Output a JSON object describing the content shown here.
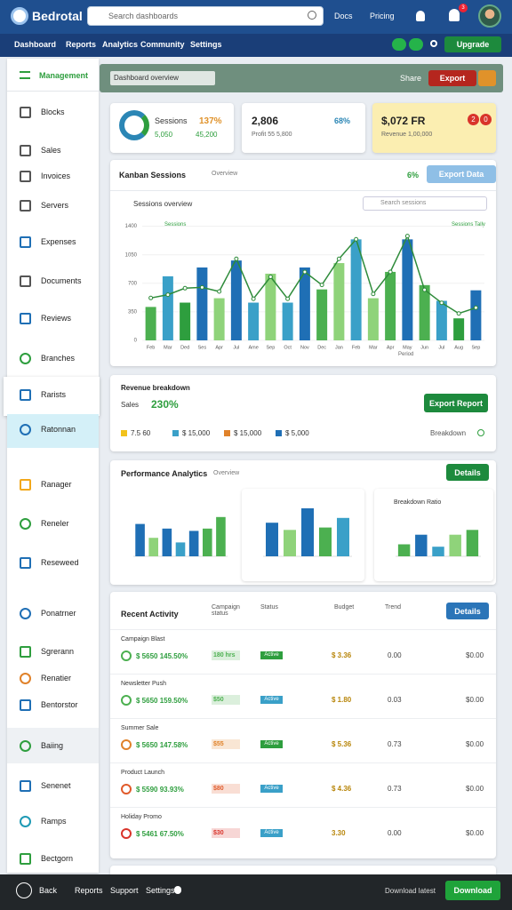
{
  "header": {
    "logo": "Bedrotal",
    "search": "Search dashboards",
    "links": [
      "Docs",
      "Pricing"
    ],
    "badge": "3"
  },
  "nav": {
    "items": [
      "Dashboard",
      "Reports",
      "Analytics",
      "Community",
      "Settings"
    ],
    "button": "Upgrade"
  },
  "sidebar": {
    "title": "Management",
    "items": [
      "Blocks",
      "Sales",
      "Invoices",
      "Servers",
      "Expenses",
      "Documents",
      "Reviews",
      "Branches",
      "Rarists",
      "Ratonnan",
      "Ranager",
      "Reneler",
      "Reseweed",
      "Ponatrner",
      "Sgrerann",
      "Renatier",
      "Bentorstor",
      "Baiing",
      "Senenet",
      "Ramps",
      "Bectgorn"
    ]
  },
  "toolbar": {
    "title": "Dashboard overview",
    "share": "Share",
    "export": "Export"
  },
  "cards": [
    {
      "label": "Sessions",
      "value": "137%",
      "sub1": "5,050",
      "sub2": "45,200"
    },
    {
      "value": "2,806",
      "pct": "68%",
      "sub": "Profit 55 5,800"
    },
    {
      "value": "$,072 FR",
      "sub": "Revenue 1,00,000",
      "badges": [
        "2",
        "0"
      ]
    }
  ],
  "main_chart": {
    "title": "Kanban Sessions",
    "subtitle": "Overview",
    "change": "6%",
    "button": "Export Data",
    "filter": "Sessions overview",
    "search": "Search sessions",
    "legend": "Sessions",
    "right_legend": "Sessions Tally",
    "axis_label": "Period",
    "categories": [
      "Feb",
      "Mar",
      "Ded",
      "Ses",
      "Apr",
      "Jul",
      "Ame",
      "Sep",
      "Oct",
      "Nov",
      "Dec",
      "Jan",
      "Feb",
      "Mar",
      "Apr",
      "May",
      "Jun",
      "Jul",
      "Aug",
      "Sep"
    ],
    "bars": [
      410,
      786,
      463,
      894,
      517,
      980,
      463,
      818,
      463,
      894,
      625,
      948,
      1239,
      517,
      840,
      1239,
      678,
      485,
      270,
      614
    ],
    "bar_colors": [
      "#4cb050",
      "#3aa0c8",
      "#2e9e3e",
      "#1f6fb5",
      "#8fd37a",
      "#1f6fb5",
      "#3aa0c8",
      "#8fd37a",
      "#3aa0c8",
      "#1f6fb5",
      "#4cb050",
      "#8fd37a",
      "#3aa0c8",
      "#8fd37a",
      "#4cb050",
      "#1f6fb5",
      "#4cb050",
      "#3aa0c8",
      "#2e9e3e",
      "#1f6fb5"
    ],
    "line": [
      520,
      560,
      640,
      650,
      600,
      1000,
      510,
      780,
      510,
      840,
      680,
      1000,
      1240,
      570,
      840,
      1280,
      620,
      460,
      330,
      400
    ],
    "line_color": "#2e8b3a",
    "ylim": [
      0,
      1450
    ],
    "yticks": [
      0,
      350,
      700,
      1050,
      1400
    ]
  },
  "revenue": {
    "title": "Revenue breakdown",
    "label": "Sales",
    "value": "230%",
    "button": "Export Report",
    "link": "Breakdown",
    "legend": [
      {
        "label": "7.5 60",
        "color": "#f2c21b"
      },
      {
        "label": "$ 15,000",
        "color": "#3aa0c8"
      },
      {
        "label": "$ 15,000",
        "color": "#e0822a"
      },
      {
        "label": "$ 5,000",
        "color": "#1f6fb5"
      }
    ]
  },
  "performance": {
    "title": "Performance Analytics",
    "subtitle": "Overview",
    "button": "Details",
    "chart_title": "Breakdown Ratio",
    "charts": [
      {
        "values": [
          70,
          40,
          60,
          30,
          55,
          60,
          85
        ],
        "colors": [
          "#1f6fb5",
          "#8fd37a",
          "#1f6fb5",
          "#3aa0c8",
          "#1f6fb5",
          "#4cb050",
          "#4cb050"
        ],
        "ylim": [
          0,
          100
        ]
      },
      {
        "values": [
          70,
          55,
          100,
          60,
          80
        ],
        "colors": [
          "#1f6fb5",
          "#8fd37a",
          "#1f6fb5",
          "#4cb050",
          "#3aa0c8"
        ],
        "ylim": [
          0,
          100
        ]
      },
      {
        "values": [
          25,
          45,
          20,
          45,
          55
        ],
        "colors": [
          "#4cb050",
          "#1f6fb5",
          "#3aa0c8",
          "#8fd37a",
          "#4cb050"
        ],
        "ylim": [
          0,
          100
        ]
      }
    ]
  },
  "table": {
    "title": "Recent Activity",
    "columns": [
      "Campaign status",
      "Status",
      "Budget",
      "Trend"
    ],
    "button": "Details",
    "rows": [
      {
        "name": "Campaign Blast",
        "amount": "$ 5650 145.50%",
        "badge": "180 hrs",
        "badge_color": "#4cb050",
        "tag": "Active",
        "tag_color": "#2e9e3e",
        "price": "$ 3.36",
        "v1": "0.00",
        "v2": "$0.00"
      },
      {
        "name": "Newsletter Push",
        "amount": "$ 5650 159.50%",
        "badge": "$50",
        "badge_color": "#4cb050",
        "tag": "Active",
        "tag_color": "#3aa0c8",
        "price": "$ 1.80",
        "v1": "0.03",
        "v2": "$0.00"
      },
      {
        "name": "Summer Sale",
        "amount": "$ 5650 147.58%",
        "badge": "$55",
        "badge_color": "#e0822a",
        "tag": "Active",
        "tag_color": "#2e9e3e",
        "price": "$ 5.36",
        "v1": "0.73",
        "v2": "$0.00"
      },
      {
        "name": "Product Launch",
        "amount": "$ 5590 93.93%",
        "badge": "$80",
        "badge_color": "#e05a2a",
        "tag": "Active",
        "tag_color": "#3aa0c8",
        "price": "$ 4.36",
        "v1": "0.73",
        "v2": "$0.00"
      },
      {
        "name": "Holiday Promo",
        "amount": "$ 5461 67.50%",
        "badge": "$30",
        "badge_color": "#d9342b",
        "tag": "Active",
        "tag_color": "#3aa0c8",
        "price": "3.30",
        "v1": "0.00",
        "v2": "$0.00"
      }
    ]
  },
  "footer": {
    "links": [
      "Back",
      "Reports",
      "Support",
      "Settings"
    ],
    "right": "Download latest",
    "button": "Download"
  }
}
